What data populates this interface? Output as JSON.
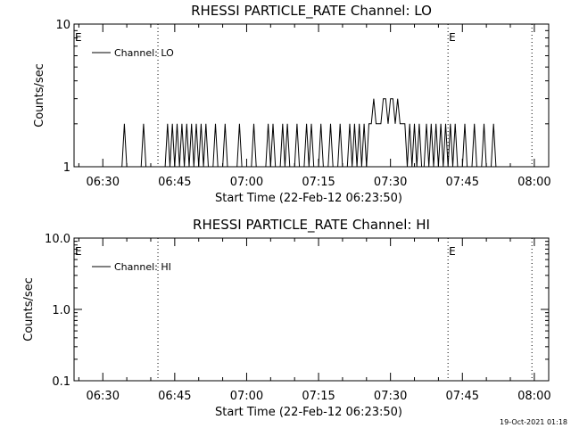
{
  "footer": {
    "timestamp": "19-Oct-2021 01:18"
  },
  "chart_data": [
    {
      "type": "line",
      "title": "RHESSI PARTICLE_RATE Channel: LO",
      "xlabel": "Start Time (22-Feb-12 06:23:50)",
      "ylabel": "Counts/sec",
      "yscale": "log",
      "xlim": [
        "06:24",
        "08:03"
      ],
      "ylim": [
        1,
        10
      ],
      "xticks": [
        "06:30",
        "06:45",
        "07:00",
        "07:15",
        "07:30",
        "07:45",
        "08:00"
      ],
      "yticks": [
        "10",
        "1"
      ],
      "grid": false,
      "legend": {
        "placement": "top-left",
        "entries": [
          "Channel: LO"
        ]
      },
      "markers": [
        {
          "label": "E",
          "time": "06:24"
        },
        {
          "label": "",
          "time": "06:41.5"
        },
        {
          "label": "E",
          "time": "07:42"
        },
        {
          "label": "",
          "time": "07:59.5"
        }
      ],
      "series": [
        {
          "name": "Channel: LO",
          "x": [
            "06:24",
            "06:34",
            "06:34.5",
            "06:35",
            "06:38",
            "06:38.5",
            "06:39",
            "06:43",
            "06:43.5",
            "06:44",
            "06:44.5",
            "06:45",
            "06:45.5",
            "06:46",
            "06:46.5",
            "06:47",
            "06:47.5",
            "06:48",
            "06:48.5",
            "06:49",
            "06:49.5",
            "06:50",
            "06:50.5",
            "06:51",
            "06:51.5",
            "06:52",
            "06:53",
            "06:53.5",
            "06:54",
            "06:55",
            "06:55.5",
            "06:56",
            "06:58",
            "06:58.5",
            "06:59",
            "07:01",
            "07:01.5",
            "07:02",
            "07:04",
            "07:04.5",
            "07:05",
            "07:05.5",
            "07:06",
            "07:07",
            "07:07.5",
            "07:08",
            "07:08.5",
            "07:09",
            "07:10",
            "07:10.5",
            "07:11",
            "07:12",
            "07:12.5",
            "07:13",
            "07:13.5",
            "07:14",
            "07:15",
            "07:15.5",
            "07:16",
            "07:17",
            "07:17.5",
            "07:18",
            "07:19",
            "07:19.5",
            "07:20",
            "07:21",
            "07:21.5",
            "07:22",
            "07:22.5",
            "07:23",
            "07:23.5",
            "07:24",
            "07:24.5",
            "07:25",
            "07:25.5",
            "07:26",
            "07:26.5",
            "07:27",
            "07:27.5",
            "07:28",
            "07:28.5",
            "07:29",
            "07:29.5",
            "07:30",
            "07:30.5",
            "07:31",
            "07:31.5",
            "07:32",
            "07:32.5",
            "07:33",
            "07:33.5",
            "07:34",
            "07:34.5",
            "07:35",
            "07:35.5",
            "07:36",
            "07:36.5",
            "07:37",
            "07:37.5",
            "07:38",
            "07:38.5",
            "07:39",
            "07:39.5",
            "07:40",
            "07:40.5",
            "07:41",
            "07:41.5",
            "07:42",
            "07:42.5",
            "07:43",
            "07:43.5",
            "07:44",
            "07:45",
            "07:45.5",
            "07:46",
            "07:47",
            "07:47.5",
            "07:48",
            "07:49",
            "07:49.5",
            "07:50",
            "07:51",
            "07:51.5",
            "07:52",
            "08:03"
          ],
          "values": [
            1,
            1,
            2,
            1,
            1,
            2,
            1,
            1,
            2,
            1,
            2,
            1,
            2,
            1,
            2,
            1,
            2,
            1,
            2,
            1,
            2,
            1,
            2,
            1,
            2,
            1,
            1,
            2,
            1,
            1,
            2,
            1,
            1,
            2,
            1,
            1,
            2,
            1,
            1,
            2,
            1,
            2,
            1,
            1,
            2,
            1,
            2,
            1,
            1,
            2,
            1,
            1,
            2,
            1,
            2,
            1,
            1,
            2,
            1,
            1,
            2,
            1,
            1,
            2,
            1,
            1,
            2,
            1,
            2,
            1,
            2,
            1,
            2,
            1,
            2,
            2,
            3,
            2,
            2,
            2,
            3,
            3,
            2,
            3,
            3,
            2,
            3,
            2,
            2,
            2,
            1,
            2,
            1,
            2,
            1,
            2,
            1,
            1,
            2,
            1,
            2,
            1,
            2,
            1,
            2,
            1,
            2,
            1,
            2,
            1,
            2,
            1,
            1,
            2,
            1,
            1,
            2,
            1,
            1,
            2,
            1,
            1,
            2,
            1,
            1
          ]
        }
      ]
    },
    {
      "type": "line",
      "title": "RHESSI PARTICLE_RATE Channel: HI",
      "xlabel": "Start Time (22-Feb-12 06:23:50)",
      "ylabel": "Counts/sec",
      "yscale": "log",
      "xlim": [
        "06:24",
        "08:03"
      ],
      "ylim": [
        0.1,
        10
      ],
      "xticks": [
        "06:30",
        "06:45",
        "07:00",
        "07:15",
        "07:30",
        "07:45",
        "08:00"
      ],
      "yticks": [
        "10.0",
        "1.0",
        "0.1"
      ],
      "grid": false,
      "legend": {
        "placement": "top-left",
        "entries": [
          "Channel: HI"
        ]
      },
      "markers": [
        {
          "label": "E",
          "time": "06:24"
        },
        {
          "label": "",
          "time": "06:41.5"
        },
        {
          "label": "E",
          "time": "07:42"
        },
        {
          "label": "",
          "time": "07:59.5"
        }
      ],
      "series": [
        {
          "name": "Channel: HI",
          "x": [],
          "values": []
        }
      ]
    }
  ]
}
